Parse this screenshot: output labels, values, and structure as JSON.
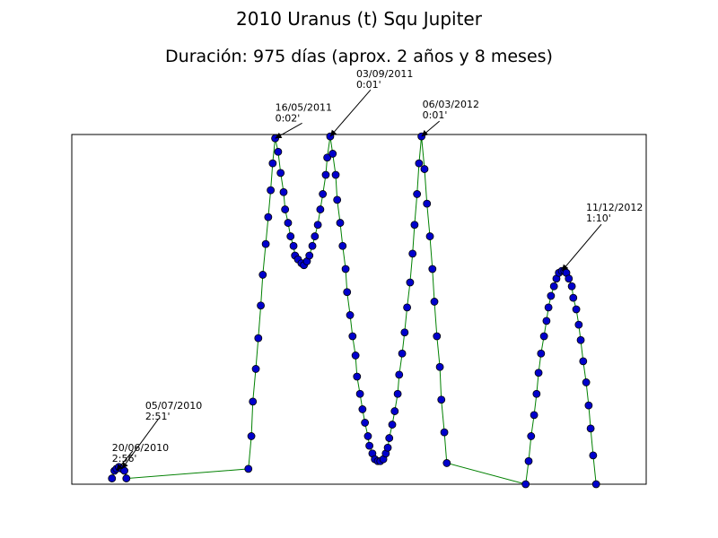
{
  "chart_data": {
    "type": "line",
    "title": "2010 Uranus (t) Squ Jupiter",
    "subtitle": "Duración: 975 días (aprox. 2 años y 8 meses)",
    "x": [
      0,
      5,
      9,
      14,
      20,
      25,
      29,
      275,
      281,
      284,
      290,
      295,
      300,
      304,
      310,
      315,
      320,
      324,
      329,
      335,
      340,
      346,
      349,
      355,
      360,
      366,
      369,
      375,
      382,
      387,
      393,
      398,
      404,
      409,
      415,
      420,
      425,
      431,
      434,
      440,
      445,
      451,
      454,
      460,
      465,
      471,
      474,
      480,
      485,
      491,
      494,
      500,
      505,
      510,
      516,
      519,
      525,
      530,
      536,
      541,
      547,
      552,
      556,
      559,
      565,
      570,
      576,
      579,
      585,
      590,
      595,
      601,
      606,
      610,
      615,
      619,
      624,
      630,
      635,
      641,
      646,
      650,
      655,
      661,
      664,
      670,
      675,
      834,
      840,
      845,
      851,
      856,
      860,
      865,
      871,
      876,
      880,
      885,
      891,
      896,
      901,
      907,
      912,
      916,
      921,
      927,
      930,
      936,
      941,
      945,
      950,
      956,
      961,
      965,
      970,
      976
    ],
    "values": [
      179,
      175,
      174,
      173,
      174,
      175,
      179,
      174,
      157,
      139,
      122,
      106,
      89,
      73,
      57,
      43,
      29,
      15,
      2,
      9,
      20,
      30,
      39,
      46,
      53,
      58,
      63,
      65,
      67,
      68,
      66,
      63,
      58,
      53,
      47,
      39,
      31,
      21,
      12,
      1,
      10,
      21,
      34,
      46,
      58,
      70,
      82,
      94,
      105,
      115,
      126,
      135,
      143,
      150,
      157,
      162,
      166,
      169,
      170,
      170,
      169,
      166,
      163,
      158,
      151,
      144,
      135,
      125,
      114,
      103,
      90,
      77,
      62,
      47,
      31,
      15,
      1,
      18,
      36,
      53,
      70,
      87,
      105,
      121,
      138,
      155,
      171,
      182,
      170,
      157,
      146,
      135,
      124,
      114,
      105,
      97,
      90,
      84,
      79,
      75,
      72,
      71,
      71,
      72,
      75,
      79,
      85,
      91,
      99,
      107,
      118,
      129,
      141,
      153,
      167,
      182
    ],
    "color": "#008000",
    "marker_color": "#0000cc",
    "xlim": [
      -81,
      1077
    ],
    "ylim": [
      182,
      0
    ],
    "annotations": [
      {
        "lines": [
          "20/06/2010",
          "2:56'"
        ],
        "x": 9,
        "y": 175
      },
      {
        "lines": [
          "05/07/2010",
          "2:51'"
        ],
        "x": 20,
        "y": 174
      },
      {
        "lines": [
          "16/05/2011",
          "0:02'"
        ],
        "x": 329,
        "y": 2
      },
      {
        "lines": [
          "03/09/2011",
          "0:01'"
        ],
        "x": 440,
        "y": 1
      },
      {
        "lines": [
          "06/03/2012",
          "0:01'"
        ],
        "x": 624,
        "y": 1
      },
      {
        "lines": [
          "11/12/2012",
          "1:10'"
        ],
        "x": 907,
        "y": 71
      }
    ]
  }
}
